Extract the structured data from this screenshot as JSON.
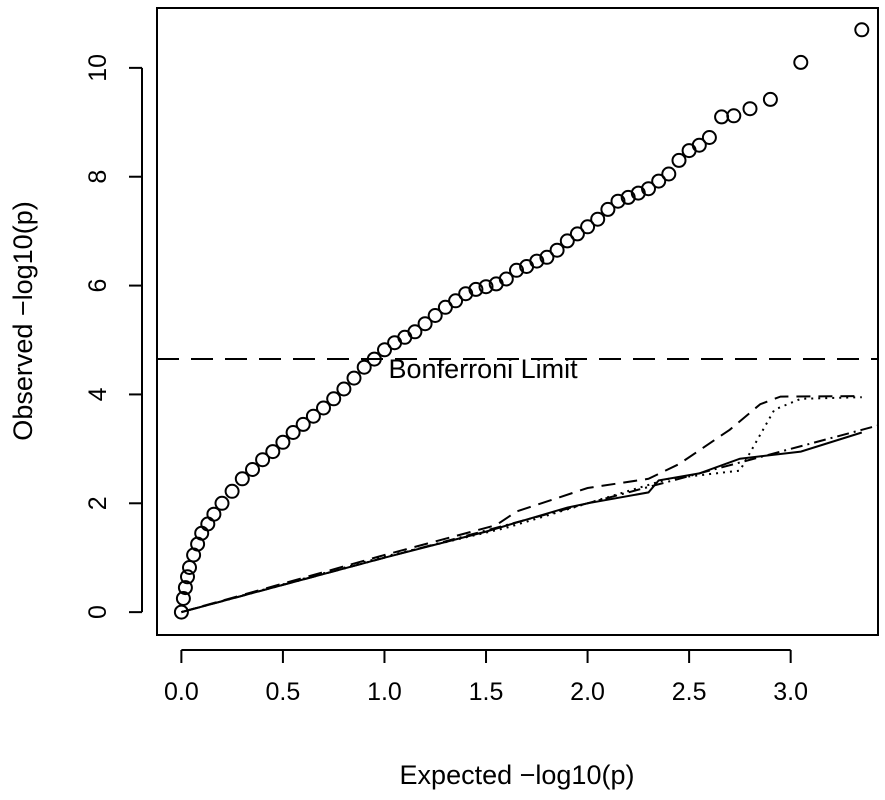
{
  "chart_data": {
    "type": "scatter",
    "title": "",
    "xlabel": "Expected −log10(p)",
    "ylabel": "Observed −log10(p)",
    "xlim": [
      -0.12,
      3.43
    ],
    "ylim": [
      -0.42,
      11.1
    ],
    "x_ticks": [
      0.0,
      0.5,
      1.0,
      1.5,
      2.0,
      2.5,
      3.0
    ],
    "x_tick_labels": [
      "0.0",
      "0.5",
      "1.0",
      "1.5",
      "2.0",
      "2.5",
      "3.0"
    ],
    "y_ticks": [
      0,
      2,
      4,
      6,
      8,
      10
    ],
    "y_tick_labels": [
      "0",
      "2",
      "4",
      "6",
      "8",
      "10"
    ],
    "grid": false,
    "legend": "none",
    "annotation": {
      "text": "Bonferroni Limit",
      "x": 1.02,
      "y": 4.3
    },
    "bonferroni_line": {
      "y": 4.65,
      "style": "dashed"
    },
    "observed_series": {
      "marker": "open-circle",
      "points": [
        [
          0.0,
          0.0
        ],
        [
          0.01,
          0.25
        ],
        [
          0.02,
          0.45
        ],
        [
          0.03,
          0.65
        ],
        [
          0.04,
          0.82
        ],
        [
          0.06,
          1.05
        ],
        [
          0.08,
          1.25
        ],
        [
          0.1,
          1.45
        ],
        [
          0.13,
          1.62
        ],
        [
          0.16,
          1.8
        ],
        [
          0.2,
          2.0
        ],
        [
          0.25,
          2.22
        ],
        [
          0.3,
          2.45
        ],
        [
          0.35,
          2.62
        ],
        [
          0.4,
          2.8
        ],
        [
          0.45,
          2.95
        ],
        [
          0.5,
          3.12
        ],
        [
          0.55,
          3.3
        ],
        [
          0.6,
          3.45
        ],
        [
          0.65,
          3.6
        ],
        [
          0.7,
          3.75
        ],
        [
          0.75,
          3.92
        ],
        [
          0.8,
          4.1
        ],
        [
          0.85,
          4.3
        ],
        [
          0.9,
          4.5
        ],
        [
          0.95,
          4.65
        ],
        [
          1.0,
          4.82
        ],
        [
          1.05,
          4.95
        ],
        [
          1.1,
          5.05
        ],
        [
          1.15,
          5.15
        ],
        [
          1.2,
          5.3
        ],
        [
          1.25,
          5.45
        ],
        [
          1.3,
          5.6
        ],
        [
          1.35,
          5.72
        ],
        [
          1.4,
          5.85
        ],
        [
          1.45,
          5.93
        ],
        [
          1.5,
          5.98
        ],
        [
          1.55,
          6.03
        ],
        [
          1.6,
          6.12
        ],
        [
          1.65,
          6.28
        ],
        [
          1.7,
          6.35
        ],
        [
          1.75,
          6.45
        ],
        [
          1.8,
          6.52
        ],
        [
          1.85,
          6.65
        ],
        [
          1.9,
          6.82
        ],
        [
          1.95,
          6.95
        ],
        [
          2.0,
          7.08
        ],
        [
          2.05,
          7.22
        ],
        [
          2.1,
          7.4
        ],
        [
          2.15,
          7.55
        ],
        [
          2.2,
          7.62
        ],
        [
          2.25,
          7.7
        ],
        [
          2.3,
          7.78
        ],
        [
          2.35,
          7.92
        ],
        [
          2.4,
          8.05
        ],
        [
          2.45,
          8.3
        ],
        [
          2.5,
          8.48
        ],
        [
          2.55,
          8.58
        ],
        [
          2.6,
          8.72
        ],
        [
          2.66,
          9.1
        ],
        [
          2.72,
          9.12
        ],
        [
          2.8,
          9.25
        ],
        [
          2.9,
          9.42
        ],
        [
          3.05,
          10.1
        ],
        [
          3.35,
          10.7
        ]
      ]
    },
    "reference_lines": [
      {
        "style": "solid",
        "points": [
          [
            0.0,
            0.0
          ],
          [
            0.5,
            0.5
          ],
          [
            1.0,
            1.0
          ],
          [
            1.5,
            1.48
          ],
          [
            1.7,
            1.7
          ],
          [
            1.9,
            1.92
          ],
          [
            2.0,
            2.0
          ],
          [
            2.3,
            2.2
          ],
          [
            2.35,
            2.42
          ],
          [
            2.55,
            2.55
          ],
          [
            2.75,
            2.82
          ],
          [
            3.05,
            2.95
          ],
          [
            3.35,
            3.3
          ]
        ]
      },
      {
        "style": "dashed",
        "points": [
          [
            0.0,
            0.0
          ],
          [
            1.0,
            1.05
          ],
          [
            1.55,
            1.6
          ],
          [
            1.65,
            1.85
          ],
          [
            2.0,
            2.28
          ],
          [
            2.3,
            2.45
          ],
          [
            2.45,
            2.72
          ],
          [
            2.7,
            3.35
          ],
          [
            2.85,
            3.82
          ],
          [
            2.95,
            3.96
          ],
          [
            3.35,
            3.97
          ]
        ]
      },
      {
        "style": "dotted",
        "points": [
          [
            0.0,
            0.0
          ],
          [
            1.0,
            1.02
          ],
          [
            1.6,
            1.55
          ],
          [
            2.0,
            2.0
          ],
          [
            2.4,
            2.45
          ],
          [
            2.75,
            2.6
          ],
          [
            2.92,
            3.72
          ],
          [
            3.05,
            3.92
          ],
          [
            3.35,
            3.95
          ]
        ]
      },
      {
        "style": "dotdash",
        "points": [
          [
            0.0,
            0.0
          ],
          [
            3.43,
            3.43
          ]
        ]
      }
    ]
  }
}
